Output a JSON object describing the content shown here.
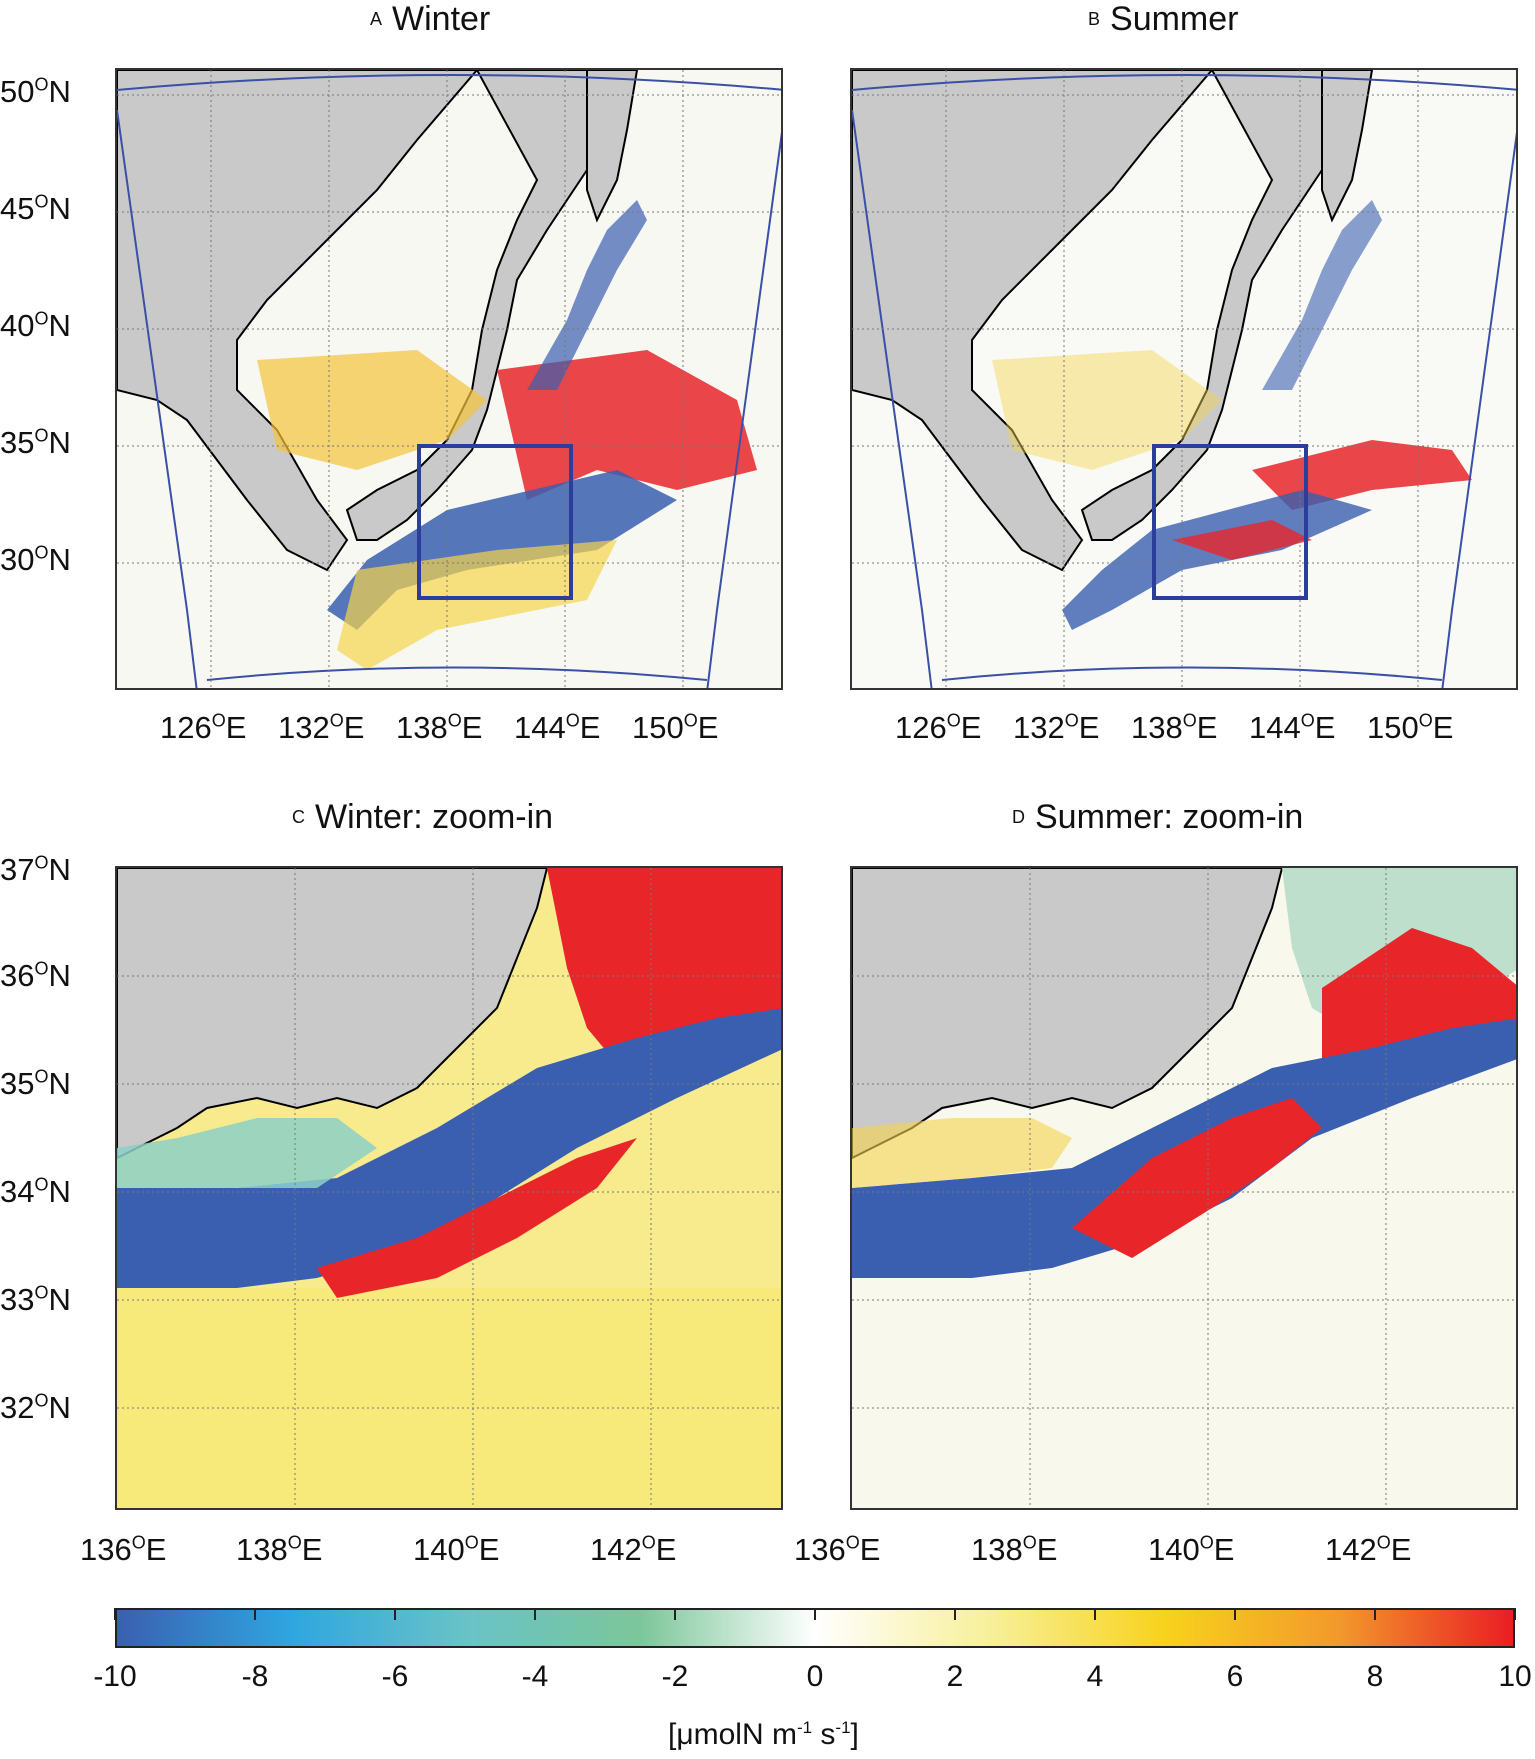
{
  "panels": [
    {
      "letter": "A",
      "title": "Winter"
    },
    {
      "letter": "B",
      "title": "Summer"
    },
    {
      "letter": "C",
      "title": "Winter: zoom-in"
    },
    {
      "letter": "D",
      "title": "Summer: zoom-in"
    }
  ],
  "top_lat_labels": [
    "50",
    "45",
    "40",
    "35",
    "30"
  ],
  "top_lon_labels": [
    "126",
    "132",
    "138",
    "144",
    "150"
  ],
  "zoom_lat_labels": [
    "37",
    "36",
    "35",
    "34",
    "33",
    "32"
  ],
  "zoom_lon_labels": [
    "136",
    "138",
    "140",
    "142"
  ],
  "deg_symbol": "O",
  "north_suffix": "N",
  "east_suffix": "E",
  "colorbar": {
    "ticks": [
      "-10",
      "-8",
      "-6",
      "-4",
      "-2",
      "0",
      "2",
      "4",
      "6",
      "8",
      "10"
    ],
    "unit_prefix": "[μmolN m",
    "unit_exp1": "-1",
    "unit_mid": " s",
    "unit_exp2": "-1",
    "unit_suffix": "]",
    "range": [
      -10,
      10
    ],
    "colors": [
      "#3a5fb0",
      "#2fa6e0",
      "#69c3c6",
      "#7cc69a",
      "#ffffff",
      "#f7f09a",
      "#f7d31c",
      "#f2992c",
      "#ea1d23"
    ]
  },
  "colors": {
    "land": "#c9c9c9",
    "box": "#2c3e9c",
    "domain": "#3a4fa6",
    "coast": "#000000"
  }
}
